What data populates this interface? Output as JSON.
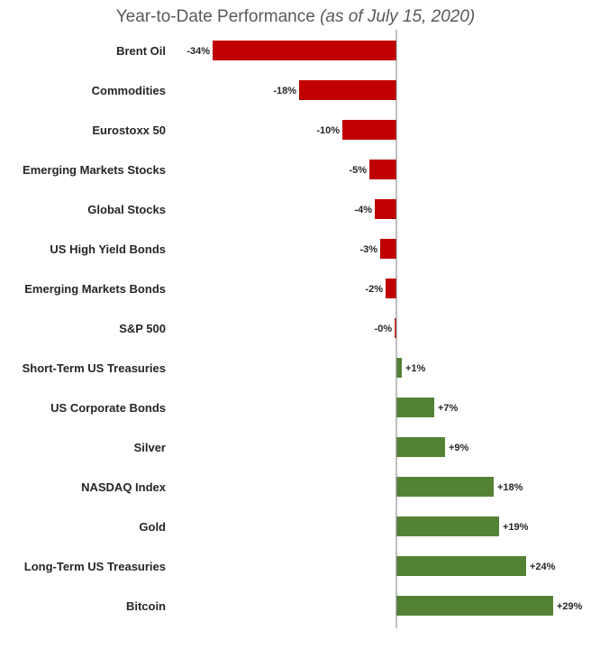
{
  "chart_data": {
    "type": "bar",
    "orientation": "horizontal",
    "title": "Year-to-Date Performance",
    "subtitle": "(as of July 15, 2020)",
    "categories": [
      "Brent Oil",
      "Commodities",
      "Eurostoxx 50",
      "Emerging Markets Stocks",
      "Global Stocks",
      "US High Yield Bonds",
      "Emerging Markets Bonds",
      "S&P 500",
      "Short-Term US Treasuries",
      "US Corporate Bonds",
      "Silver",
      "NASDAQ Index",
      "Gold",
      "Long-Term US Treasuries",
      "Bitcoin"
    ],
    "values": [
      -34,
      -18,
      -10,
      -5,
      -4,
      -3,
      -2,
      -0.3,
      1,
      7,
      9,
      18,
      19,
      24,
      29
    ],
    "labels": [
      "-34%",
      "-18%",
      "-10%",
      "-5%",
      "-4%",
      "-3%",
      "-2%",
      "-0%",
      "+1%",
      "+7%",
      "+9%",
      "+18%",
      "+19%",
      "+24%",
      "+29%"
    ],
    "unit": "%",
    "colors": {
      "negative": "#c00000",
      "positive": "#548235",
      "axis": "#7f7f7f"
    },
    "grid": false,
    "legend": "none"
  }
}
